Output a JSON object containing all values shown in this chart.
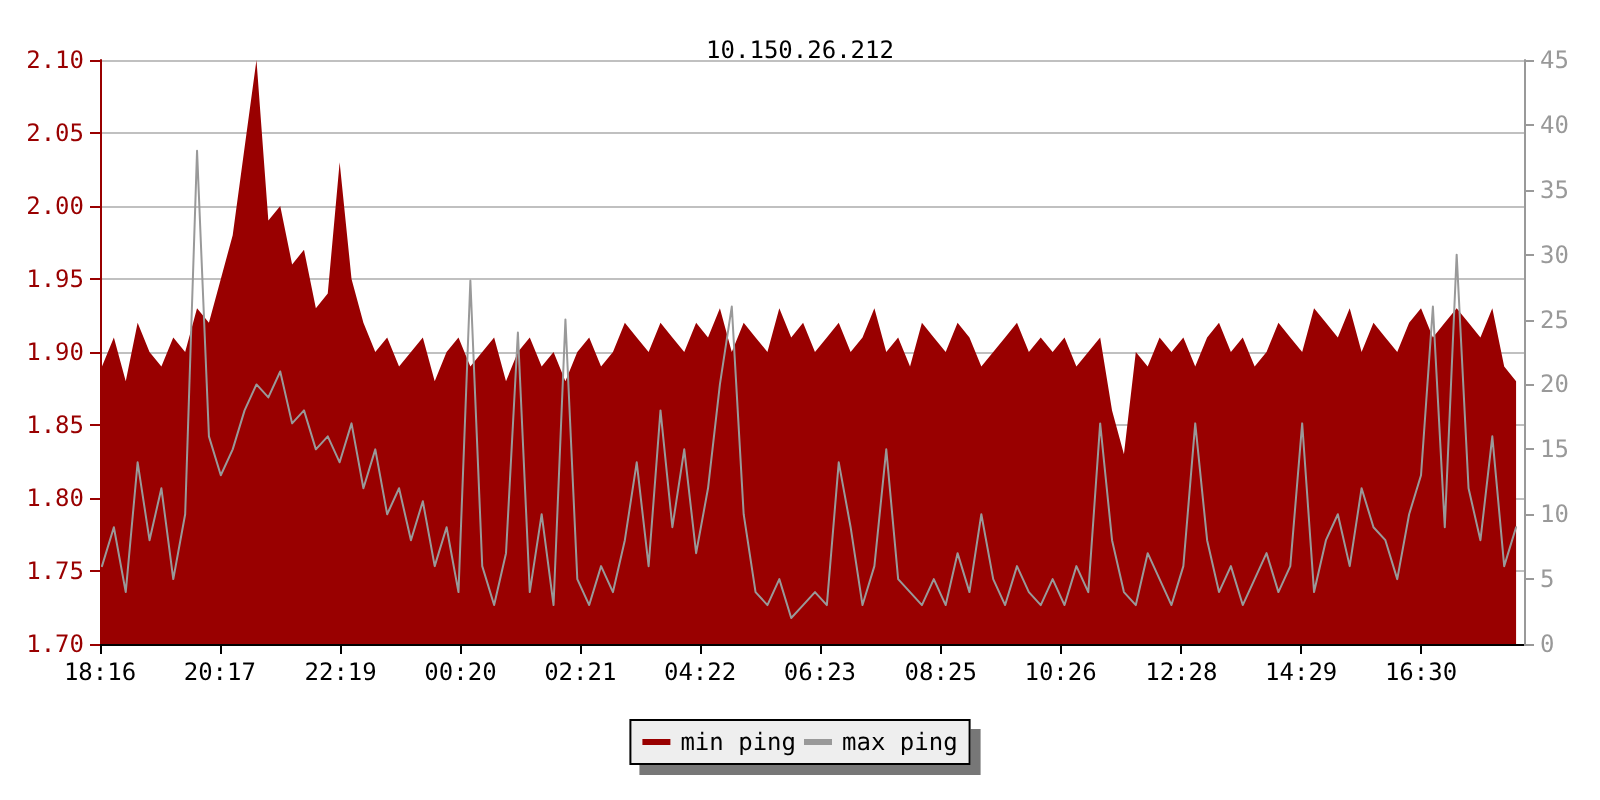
{
  "chart_data": {
    "type": "line",
    "title": "10.150.26.212",
    "legend": "bottom",
    "grid": "y",
    "marker": "none",
    "line_style": "solid",
    "xlim": [
      "--01-01T18:16",
      "--01-02T18:14"
    ],
    "xticks": [
      {
        "value": "--01-01T18:16",
        "label": "18:16"
      },
      {
        "value": "--01-01T20:17",
        "label": "20:17"
      },
      {
        "value": "--01-01T22:19",
        "label": "22:19"
      },
      {
        "value": "--01-02T00:20",
        "label": "00:20"
      },
      {
        "value": "--01-02T02:21",
        "label": "02:21"
      },
      {
        "value": "--01-02T04:22",
        "label": "04:22"
      },
      {
        "value": "--01-02T06:23",
        "label": "06:23"
      },
      {
        "value": "--01-02T08:25",
        "label": "08:25"
      },
      {
        "value": "--01-02T10:26",
        "label": "10:26"
      },
      {
        "value": "--01-02T12:28",
        "label": "12:28"
      },
      {
        "value": "--01-02T14:29",
        "label": "14:29"
      },
      {
        "value": "--01-02T16:30",
        "label": "16:30"
      }
    ],
    "ylim": [
      1.7,
      2.1
    ],
    "yticks": [
      {
        "value": 1.7,
        "label": "1.70"
      },
      {
        "value": 1.75,
        "label": "1.75"
      },
      {
        "value": 1.8,
        "label": "1.80"
      },
      {
        "value": 1.85,
        "label": "1.85"
      },
      {
        "value": 1.9,
        "label": "1.90"
      },
      {
        "value": 1.95,
        "label": "1.95"
      },
      {
        "value": 2.0,
        "label": "2.00"
      },
      {
        "value": 2.05,
        "label": "2.05"
      },
      {
        "value": 2.1,
        "label": "2.10"
      }
    ],
    "y2lim": [
      0,
      45
    ],
    "y2ticks": [
      0,
      5,
      10,
      15,
      20,
      25,
      30,
      35,
      40,
      45
    ],
    "x": [
      "--01-01T18:18",
      "--01-01T18:30",
      "--01-01T18:42",
      "--01-01T18:54",
      "--01-01T19:06",
      "--01-01T19:18",
      "--01-01T19:30",
      "--01-01T19:42",
      "--01-01T19:54",
      "--01-01T20:06",
      "--01-01T20:18",
      "--01-01T20:30",
      "--01-01T20:42",
      "--01-01T20:54",
      "--01-01T21:06",
      "--01-01T21:18",
      "--01-01T21:30",
      "--01-01T21:42",
      "--01-01T21:54",
      "--01-01T22:06",
      "--01-01T22:18",
      "--01-01T22:30",
      "--01-01T22:42",
      "--01-01T22:54",
      "--01-01T23:06",
      "--01-01T23:18",
      "--01-01T23:30",
      "--01-01T23:42",
      "--01-01T23:54",
      "--01-02T00:06",
      "--01-02T00:18",
      "--01-02T00:30",
      "--01-02T00:42",
      "--01-02T00:54",
      "--01-02T01:06",
      "--01-02T01:18",
      "--01-02T01:30",
      "--01-02T01:42",
      "--01-02T01:54",
      "--01-02T02:06",
      "--01-02T02:18",
      "--01-02T02:30",
      "--01-02T02:42",
      "--01-02T02:54",
      "--01-02T03:06",
      "--01-02T03:18",
      "--01-02T03:30",
      "--01-02T03:42",
      "--01-02T03:54",
      "--01-02T04:06",
      "--01-02T04:18",
      "--01-02T04:30",
      "--01-02T04:42",
      "--01-02T04:54",
      "--01-02T05:06",
      "--01-02T05:18",
      "--01-02T05:30",
      "--01-02T05:42",
      "--01-02T05:54",
      "--01-02T06:06",
      "--01-02T06:18",
      "--01-02T06:30",
      "--01-02T06:42",
      "--01-02T06:54",
      "--01-02T07:06",
      "--01-02T07:18",
      "--01-02T07:30",
      "--01-02T07:42",
      "--01-02T07:54",
      "--01-02T08:06",
      "--01-02T08:18",
      "--01-02T08:30",
      "--01-02T08:42",
      "--01-02T08:54",
      "--01-02T09:06",
      "--01-02T09:18",
      "--01-02T09:30",
      "--01-02T09:42",
      "--01-02T09:54",
      "--01-02T10:06",
      "--01-02T10:18",
      "--01-02T10:30",
      "--01-02T10:42",
      "--01-02T10:54",
      "--01-02T11:06",
      "--01-02T11:18",
      "--01-02T11:30",
      "--01-02T11:42",
      "--01-02T11:54",
      "--01-02T12:06",
      "--01-02T12:18",
      "--01-02T12:30",
      "--01-02T12:42",
      "--01-02T12:54",
      "--01-02T13:06",
      "--01-02T13:18",
      "--01-02T13:30",
      "--01-02T13:42",
      "--01-02T13:54",
      "--01-02T14:06",
      "--01-02T14:18",
      "--01-02T14:30",
      "--01-02T14:42",
      "--01-02T14:54",
      "--01-02T15:06",
      "--01-02T15:18",
      "--01-02T15:30",
      "--01-02T15:42",
      "--01-02T15:54",
      "--01-02T16:06",
      "--01-02T16:18",
      "--01-02T16:30",
      "--01-02T16:42",
      "--01-02T16:54",
      "--01-02T17:06",
      "--01-02T17:18",
      "--01-02T17:30",
      "--01-02T17:42",
      "--01-02T17:54",
      "--01-02T18:06"
    ],
    "series": [
      {
        "name": "min ping",
        "type": "area",
        "color": "#990000",
        "values": [
          1.89,
          1.91,
          1.88,
          1.92,
          1.9,
          1.89,
          1.91,
          1.9,
          1.93,
          1.92,
          1.95,
          1.98,
          2.04,
          2.1,
          1.99,
          2.0,
          1.96,
          1.97,
          1.93,
          1.94,
          2.03,
          1.95,
          1.92,
          1.9,
          1.91,
          1.89,
          1.9,
          1.91,
          1.88,
          1.9,
          1.91,
          1.89,
          1.9,
          1.91,
          1.88,
          1.9,
          1.91,
          1.89,
          1.9,
          1.88,
          1.9,
          1.91,
          1.89,
          1.9,
          1.92,
          1.91,
          1.9,
          1.92,
          1.91,
          1.9,
          1.92,
          1.91,
          1.93,
          1.9,
          1.92,
          1.91,
          1.9,
          1.93,
          1.91,
          1.92,
          1.9,
          1.91,
          1.92,
          1.9,
          1.91,
          1.93,
          1.9,
          1.91,
          1.89,
          1.92,
          1.91,
          1.9,
          1.92,
          1.91,
          1.89,
          1.9,
          1.91,
          1.92,
          1.9,
          1.91,
          1.9,
          1.91,
          1.89,
          1.9,
          1.91,
          1.86,
          1.83,
          1.9,
          1.89,
          1.91,
          1.9,
          1.91,
          1.89,
          1.91,
          1.92,
          1.9,
          1.91,
          1.89,
          1.9,
          1.92,
          1.91,
          1.9,
          1.93,
          1.92,
          1.91,
          1.93,
          1.9,
          1.92,
          1.91,
          1.9,
          1.92,
          1.93,
          1.91,
          1.92,
          1.93,
          1.92,
          1.91,
          1.93,
          1.89,
          1.88
        ]
      },
      {
        "name": "max ping",
        "axis": "y2",
        "color": "#999999",
        "values": [
          6,
          9,
          4,
          14,
          8,
          12,
          5,
          10,
          38,
          16,
          13,
          15,
          18,
          20,
          19,
          21,
          17,
          18,
          15,
          16,
          14,
          17,
          12,
          15,
          10,
          12,
          8,
          11,
          6,
          9,
          4,
          28,
          6,
          3,
          7,
          24,
          4,
          10,
          3,
          25,
          5,
          3,
          6,
          4,
          8,
          14,
          6,
          18,
          9,
          15,
          7,
          12,
          20,
          26,
          10,
          4,
          3,
          5,
          2,
          3,
          4,
          3,
          14,
          9,
          3,
          6,
          15,
          5,
          4,
          3,
          5,
          3,
          7,
          4,
          10,
          5,
          3,
          6,
          4,
          3,
          5,
          3,
          6,
          4,
          17,
          8,
          4,
          3,
          7,
          5,
          3,
          6,
          17,
          8,
          4,
          6,
          3,
          5,
          7,
          4,
          6,
          17,
          4,
          8,
          10,
          6,
          12,
          9,
          8,
          5,
          10,
          13,
          26,
          9,
          30,
          12,
          8,
          16,
          6,
          9
        ]
      }
    ]
  }
}
